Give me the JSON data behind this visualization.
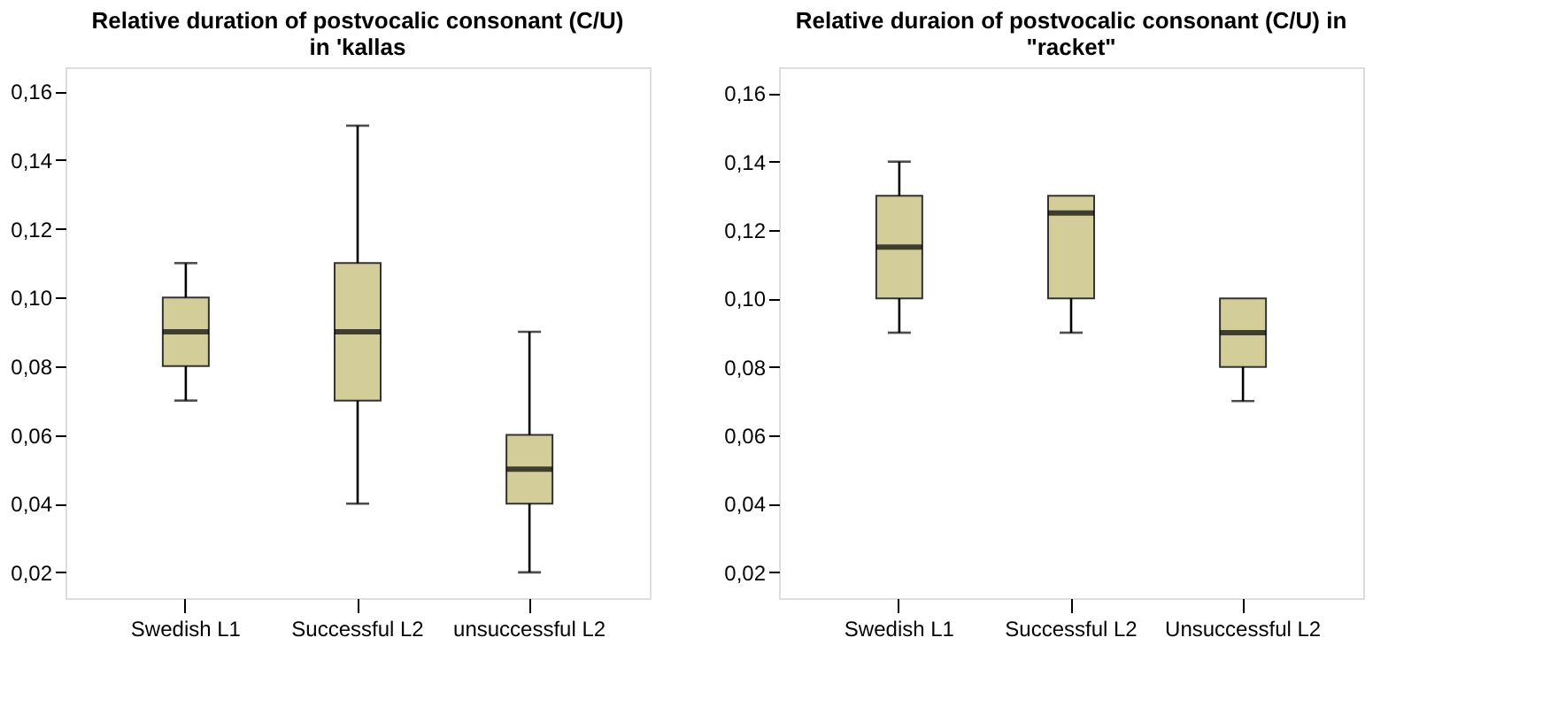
{
  "chart_data": [
    {
      "type": "box",
      "title": "Relative duration of postvocalic consonant (C/U) in 'kallas",
      "categories": [
        "Swedish L1",
        "Successful L2",
        "unsuccessful L2"
      ],
      "series": [
        {
          "color": "#d3cd9a",
          "boxes": [
            {
              "low": 0.07,
              "q1": 0.08,
              "median": 0.09,
              "q3": 0.1,
              "high": 0.11
            },
            {
              "low": 0.04,
              "q1": 0.07,
              "median": 0.09,
              "q3": 0.11,
              "high": 0.15
            },
            {
              "low": 0.02,
              "q1": 0.04,
              "median": 0.05,
              "q3": 0.06,
              "high": 0.09
            }
          ]
        }
      ],
      "ylim": [
        0.0125,
        0.167
      ],
      "yticks": [
        {
          "value": 0.02,
          "label": "0,02"
        },
        {
          "value": 0.04,
          "label": "0,04"
        },
        {
          "value": 0.06,
          "label": "0,06"
        },
        {
          "value": 0.08,
          "label": "0,08"
        },
        {
          "value": 0.1,
          "label": "0,10"
        },
        {
          "value": 0.12,
          "label": "0,12"
        },
        {
          "value": 0.14,
          "label": "0,14"
        },
        {
          "value": 0.16,
          "label": "0,16"
        }
      ],
      "grid": false,
      "legend": false
    },
    {
      "type": "box",
      "title": "Relative duraion of postvocalic consonant (C/U) in \"racket\"",
      "categories": [
        "Swedish L1",
        "Successful L2",
        "Unsuccessful L2"
      ],
      "series": [
        {
          "color": "#d3cd9a",
          "boxes": [
            {
              "low": 0.09,
              "q1": 0.1,
              "median": 0.115,
              "q3": 0.13,
              "high": 0.14
            },
            {
              "low": 0.09,
              "q1": 0.1,
              "median": 0.125,
              "q3": 0.13,
              "high": 0.13
            },
            {
              "low": 0.07,
              "q1": 0.08,
              "median": 0.09,
              "q3": 0.1,
              "high": 0.1
            }
          ]
        }
      ],
      "ylim": [
        0.0124,
        0.1676
      ],
      "yticks": [
        {
          "value": 0.02,
          "label": "0,02"
        },
        {
          "value": 0.04,
          "label": "0,04"
        },
        {
          "value": 0.06,
          "label": "0,06"
        },
        {
          "value": 0.08,
          "label": "0,08"
        },
        {
          "value": 0.1,
          "label": "0,10"
        },
        {
          "value": 0.12,
          "label": "0,12"
        },
        {
          "value": 0.14,
          "label": "0,14"
        },
        {
          "value": 0.16,
          "label": "0,16"
        }
      ],
      "grid": false,
      "legend": false
    }
  ]
}
